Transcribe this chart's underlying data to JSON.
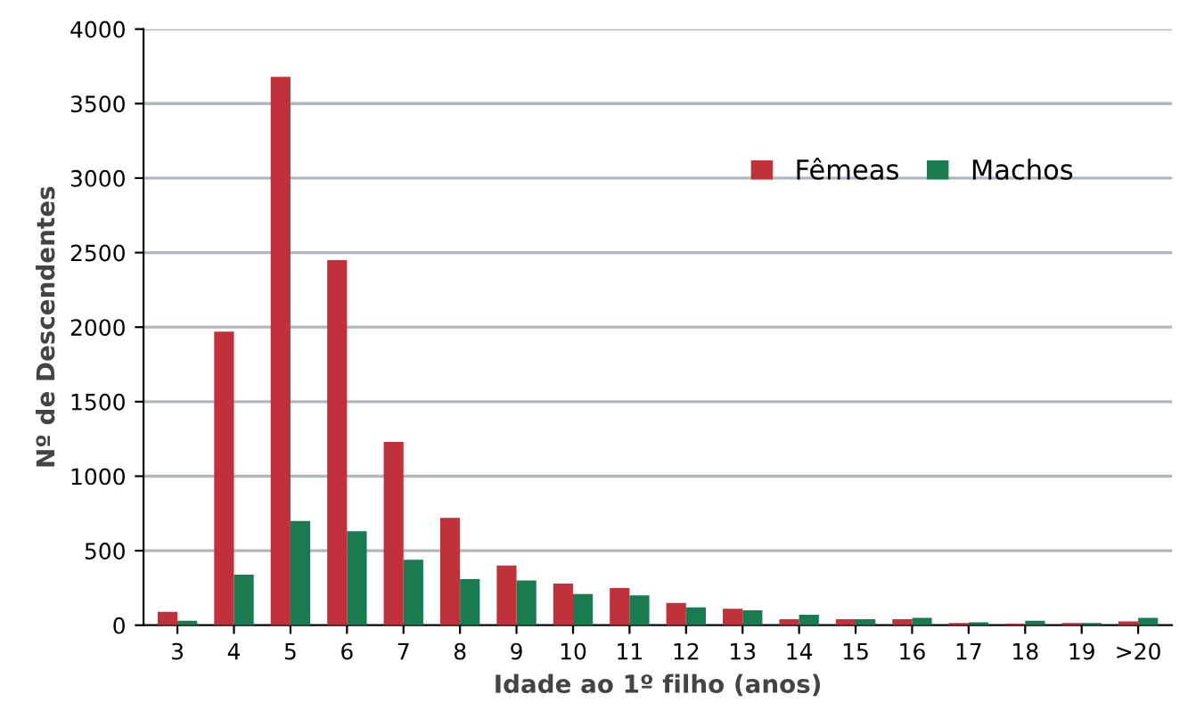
{
  "chart_data": {
    "type": "bar",
    "xlabel": "Idade ao 1º filho (anos)",
    "ylabel": "Nº de Descendentes",
    "categories": [
      "3",
      "4",
      "5",
      "6",
      "7",
      "8",
      "9",
      "10",
      "11",
      "12",
      "13",
      "14",
      "15",
      "16",
      "17",
      "18",
      "19",
      ">20"
    ],
    "series": [
      {
        "name": "Fêmeas",
        "color": "#c0313b",
        "values": [
          90,
          1970,
          3680,
          2450,
          1230,
          720,
          400,
          280,
          250,
          150,
          110,
          40,
          40,
          40,
          15,
          10,
          15,
          25
        ]
      },
      {
        "name": "Machos",
        "color": "#1a7a50",
        "values": [
          30,
          340,
          700,
          630,
          440,
          310,
          300,
          210,
          200,
          120,
          100,
          70,
          40,
          50,
          20,
          30,
          15,
          50
        ]
      }
    ],
    "ylim": [
      0,
      4000
    ],
    "yticks": [
      0,
      500,
      1000,
      1500,
      2000,
      2500,
      3000,
      3500,
      4000
    ],
    "grid": "y",
    "legend": "top right"
  }
}
